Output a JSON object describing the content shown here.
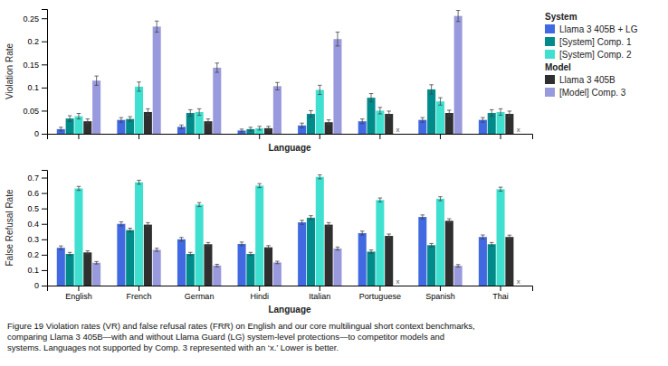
{
  "chart_data": [
    {
      "type": "bar",
      "xlabel": "Language",
      "ylabel": "Violation Rate",
      "categories": [
        "English",
        "French",
        "German",
        "Hindi",
        "Italian",
        "Portuguese",
        "Spanish",
        "Thai"
      ],
      "series": [
        {
          "name": "Llama 3 405B + LG",
          "group": "System",
          "color": "#4169E1",
          "values": [
            0.01,
            0.03,
            0.015,
            0.007,
            0.018,
            0.027,
            0.03,
            0.03
          ],
          "errors": [
            0.004,
            0.005,
            0.004,
            0.003,
            0.005,
            0.005,
            0.005,
            0.005
          ]
        },
        {
          "name": "[System] Comp. 1",
          "group": "System",
          "color": "#008B8B",
          "values": [
            0.033,
            0.032,
            0.045,
            0.01,
            0.043,
            0.078,
            0.096,
            0.045
          ],
          "errors": [
            0.006,
            0.005,
            0.007,
            0.004,
            0.007,
            0.009,
            0.01,
            0.007
          ]
        },
        {
          "name": "[System] Comp. 2",
          "group": "System",
          "color": "#40E0D0",
          "values": [
            0.038,
            0.102,
            0.047,
            0.012,
            0.095,
            0.05,
            0.07,
            0.047
          ],
          "errors": [
            0.006,
            0.01,
            0.007,
            0.004,
            0.01,
            0.007,
            0.008,
            0.007
          ]
        },
        {
          "name": "Llama 3 405B",
          "group": "Model",
          "color": "#2F2F2F",
          "values": [
            0.027,
            0.047,
            0.027,
            0.012,
            0.025,
            0.043,
            0.045,
            0.043
          ],
          "errors": [
            0.005,
            0.007,
            0.005,
            0.004,
            0.005,
            0.006,
            0.006,
            0.006
          ]
        },
        {
          "name": "[Model] Comp. 3",
          "group": "Model",
          "color": "#9999DD",
          "values": [
            0.115,
            0.232,
            0.143,
            0.103,
            0.205,
            null,
            0.255,
            null
          ],
          "errors": [
            0.01,
            0.012,
            0.01,
            0.008,
            0.015,
            null,
            0.012,
            null
          ]
        }
      ],
      "annotations": [
        {
          "text": "x",
          "category": "Portuguese",
          "series": "[Model] Comp. 3"
        },
        {
          "text": "x",
          "category": "Thai",
          "series": "[Model] Comp. 3"
        }
      ],
      "ylim": [
        0,
        0.27
      ],
      "yticks": [
        0,
        0.05,
        0.1,
        0.15,
        0.2,
        0.25
      ],
      "grid": false,
      "legend": "right",
      "tick_labels": "y"
    },
    {
      "type": "bar",
      "xlabel": "Language",
      "ylabel": "False Refusal Rate",
      "categories": [
        "English",
        "French",
        "German",
        "Hindi",
        "Italian",
        "Portuguese",
        "Spanish",
        "Thai"
      ],
      "series": [
        {
          "name": "Llama 3 405B + LG",
          "color": "#4169E1",
          "values": [
            0.245,
            0.4,
            0.3,
            0.27,
            0.41,
            0.34,
            0.445,
            0.315
          ],
          "errors": [
            0.012,
            0.013,
            0.012,
            0.012,
            0.013,
            0.013,
            0.013,
            0.013
          ]
        },
        {
          "name": "[System] Comp. 1",
          "color": "#008B8B",
          "values": [
            0.205,
            0.36,
            0.205,
            0.205,
            0.44,
            0.22,
            0.262,
            0.268
          ],
          "errors": [
            0.01,
            0.012,
            0.01,
            0.01,
            0.013,
            0.011,
            0.011,
            0.011
          ]
        },
        {
          "name": "[System] Comp. 2",
          "color": "#40E0D0",
          "values": [
            0.63,
            0.67,
            0.525,
            0.648,
            0.705,
            0.555,
            0.563,
            0.625
          ],
          "errors": [
            0.013,
            0.013,
            0.013,
            0.013,
            0.013,
            0.013,
            0.013,
            0.013
          ]
        },
        {
          "name": "Llama 3 405B",
          "color": "#2F2F2F",
          "values": [
            0.215,
            0.395,
            0.268,
            0.248,
            0.395,
            0.322,
            0.42,
            0.315
          ],
          "errors": [
            0.01,
            0.013,
            0.011,
            0.011,
            0.013,
            0.012,
            0.013,
            0.012
          ]
        },
        {
          "name": "[Model] Comp. 3",
          "color": "#9999DD",
          "values": [
            0.148,
            0.232,
            0.13,
            0.15,
            0.24,
            null,
            0.128,
            null
          ],
          "errors": [
            0.008,
            0.01,
            0.008,
            0.008,
            0.01,
            null,
            0.008,
            null
          ]
        }
      ],
      "annotations": [
        {
          "text": "x",
          "category": "Portuguese",
          "series": "[Model] Comp. 3"
        },
        {
          "text": "x",
          "category": "Thai",
          "series": "[Model] Comp. 3"
        }
      ],
      "ylim": [
        0,
        0.75
      ],
      "yticks": [
        0,
        0.1,
        0.2,
        0.3,
        0.4,
        0.5,
        0.6,
        0.7
      ],
      "grid": false,
      "caption": "Figure 19  Violation rates (VR) and false refusal rates (FRR) on English and our core multilingual short context benchmarks,\ncomparing Llama 3 405B—with and without Llama Guard (LG) system-level protections—to competitor models and\nsystems. Languages not supported by Comp. 3 represented with an ‘x.’ Lower is better."
    }
  ]
}
